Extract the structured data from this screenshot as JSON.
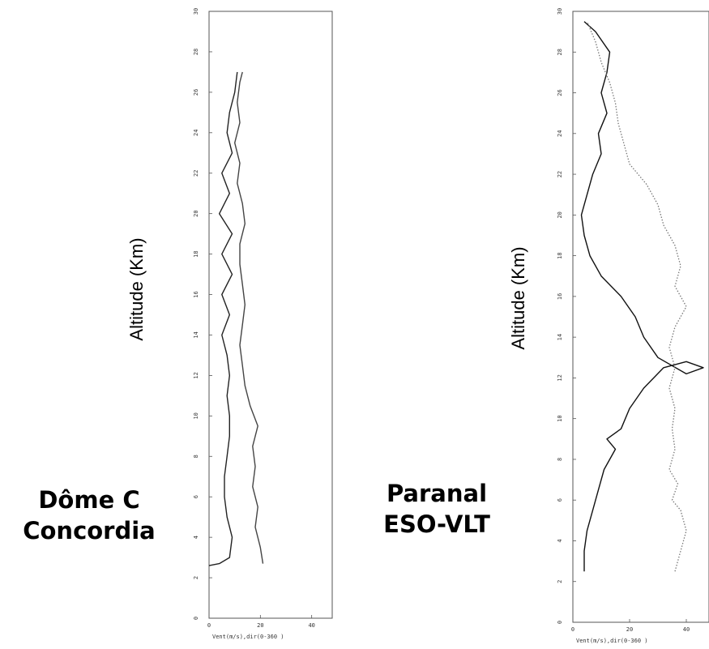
{
  "chart_data": [
    {
      "type": "line",
      "ylabel": "Altitude (Km)",
      "xlabel": "Vent(m/s),dir(0-360 )",
      "site_lines": [
        "Dôme C",
        "Concordia"
      ],
      "xlim": [
        0,
        48
      ],
      "ylim": [
        0,
        30
      ],
      "xticks": [
        "0",
        "20",
        "40"
      ],
      "yticks": [
        "0",
        "2",
        "4",
        "6",
        "8",
        "10",
        "12",
        "14",
        "16",
        "18",
        "20",
        "22",
        "24",
        "26",
        "28",
        "30"
      ],
      "series": [
        {
          "style": "solid",
          "color": "#222222",
          "points": [
            [
              0,
              2.6
            ],
            [
              4,
              2.7
            ],
            [
              8,
              3.0
            ],
            [
              9,
              4.0
            ],
            [
              7,
              5.0
            ],
            [
              6,
              6.0
            ],
            [
              6,
              7.0
            ],
            [
              7,
              8.0
            ],
            [
              8,
              9.0
            ],
            [
              8,
              10.0
            ],
            [
              7,
              11.0
            ],
            [
              8,
              12.0
            ],
            [
              7,
              13.0
            ],
            [
              5,
              14.0
            ],
            [
              8,
              15.0
            ],
            [
              5,
              16.0
            ],
            [
              9,
              17.0
            ],
            [
              5,
              18.0
            ],
            [
              9,
              19.0
            ],
            [
              4,
              20.0
            ],
            [
              8,
              21.0
            ],
            [
              5,
              22.0
            ],
            [
              9,
              23.0
            ],
            [
              7,
              24.0
            ],
            [
              8,
              25.0
            ],
            [
              10,
              26.0
            ],
            [
              11,
              27.0
            ]
          ]
        },
        {
          "style": "solid",
          "color": "#444444",
          "points": [
            [
              21,
              2.7
            ],
            [
              20,
              3.5
            ],
            [
              18,
              4.5
            ],
            [
              19,
              5.5
            ],
            [
              17,
              6.5
            ],
            [
              18,
              7.5
            ],
            [
              17,
              8.5
            ],
            [
              19,
              9.5
            ],
            [
              16,
              10.5
            ],
            [
              14,
              11.5
            ],
            [
              13,
              12.5
            ],
            [
              12,
              13.5
            ],
            [
              13,
              14.5
            ],
            [
              14,
              15.5
            ],
            [
              13,
              16.5
            ],
            [
              12,
              17.5
            ],
            [
              12,
              18.5
            ],
            [
              14,
              19.5
            ],
            [
              13,
              20.5
            ],
            [
              11,
              21.5
            ],
            [
              12,
              22.5
            ],
            [
              10,
              23.5
            ],
            [
              12,
              24.5
            ],
            [
              11,
              25.5
            ],
            [
              12,
              26.5
            ],
            [
              13,
              27.0
            ]
          ]
        }
      ]
    },
    {
      "type": "line",
      "ylabel": "Altitude (Km)",
      "xlabel": "Vent(m/s),dir(0-360 )",
      "site_lines": [
        "Paranal",
        "ESO-VLT"
      ],
      "xlim": [
        0,
        48
      ],
      "ylim": [
        0,
        30
      ],
      "xticks": [
        "0",
        "20",
        "40"
      ],
      "yticks": [
        "0",
        "2",
        "4",
        "6",
        "8",
        "10",
        "12",
        "14",
        "16",
        "18",
        "20",
        "22",
        "24",
        "26",
        "28",
        "30"
      ],
      "series": [
        {
          "style": "solid",
          "color": "#111111",
          "points": [
            [
              4,
              2.5
            ],
            [
              4,
              3.5
            ],
            [
              5,
              4.5
            ],
            [
              7,
              5.5
            ],
            [
              9,
              6.5
            ],
            [
              11,
              7.5
            ],
            [
              15,
              8.5
            ],
            [
              12,
              9.0
            ],
            [
              17,
              9.5
            ],
            [
              20,
              10.5
            ],
            [
              25,
              11.5
            ],
            [
              32,
              12.5
            ],
            [
              40,
              12.8
            ],
            [
              46,
              12.5
            ],
            [
              40,
              12.2
            ],
            [
              30,
              13.0
            ],
            [
              25,
              14.0
            ],
            [
              22,
              15.0
            ],
            [
              17,
              16.0
            ],
            [
              10,
              17.0
            ],
            [
              6,
              18.0
            ],
            [
              4,
              19.0
            ],
            [
              3,
              20.0
            ],
            [
              5,
              21.0
            ],
            [
              7,
              22.0
            ],
            [
              10,
              23.0
            ],
            [
              9,
              24.0
            ],
            [
              12,
              25.0
            ],
            [
              10,
              26.0
            ],
            [
              12,
              27.0
            ],
            [
              13,
              28.0
            ],
            [
              8,
              29.0
            ],
            [
              4,
              29.5
            ]
          ]
        },
        {
          "style": "dotted",
          "color": "#777777",
          "points": [
            [
              36,
              2.5
            ],
            [
              38,
              3.5
            ],
            [
              40,
              4.5
            ],
            [
              38,
              5.5
            ],
            [
              35,
              6.0
            ],
            [
              37,
              6.8
            ],
            [
              34,
              7.5
            ],
            [
              36,
              8.5
            ],
            [
              35,
              9.5
            ],
            [
              36,
              10.5
            ],
            [
              34,
              11.5
            ],
            [
              36,
              12.5
            ],
            [
              34,
              13.5
            ],
            [
              36,
              14.5
            ],
            [
              40,
              15.5
            ],
            [
              36,
              16.5
            ],
            [
              38,
              17.5
            ],
            [
              36,
              18.5
            ],
            [
              32,
              19.5
            ],
            [
              30,
              20.5
            ],
            [
              26,
              21.5
            ],
            [
              20,
              22.5
            ],
            [
              18,
              23.5
            ],
            [
              16,
              24.5
            ],
            [
              15,
              25.5
            ],
            [
              13,
              26.5
            ],
            [
              10,
              27.5
            ],
            [
              8,
              28.5
            ],
            [
              5,
              29.5
            ]
          ]
        }
      ]
    }
  ]
}
